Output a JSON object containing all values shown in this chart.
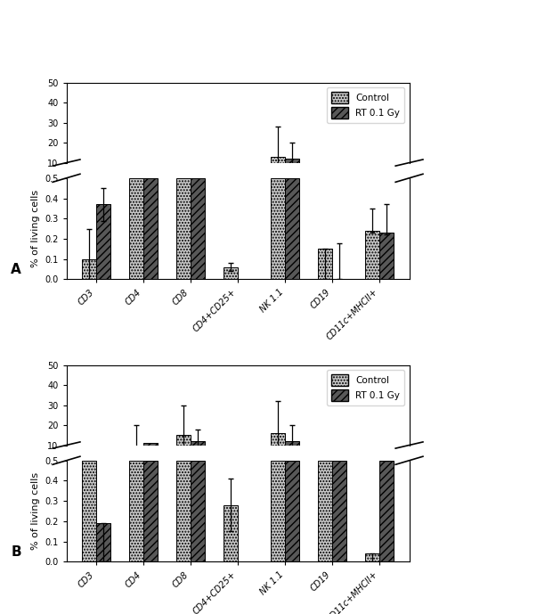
{
  "categories": [
    "CD3",
    "CD4",
    "CD8",
    "CD4+CD25+",
    "NK 1.1",
    "CD19",
    "CD11c+MHCII+"
  ],
  "panel_A": {
    "control_lower": [
      0.1,
      0.5,
      0.5,
      0.06,
      0.5,
      0.15,
      0.24
    ],
    "rt_lower": [
      0.37,
      0.5,
      0.5,
      0.0,
      0.5,
      0.0,
      0.23
    ],
    "control_lower_err_minus": [
      0.1,
      0.0,
      0.0,
      0.02,
      0.0,
      0.15,
      0.01
    ],
    "control_lower_err_plus": [
      0.15,
      0.0,
      0.0,
      0.02,
      0.0,
      0.0,
      0.11
    ],
    "rt_lower_err_minus": [
      0.08,
      0.0,
      0.0,
      0.0,
      0.0,
      0.0,
      0.01
    ],
    "rt_lower_err_plus": [
      0.08,
      0.0,
      0.0,
      0.0,
      0.0,
      0.18,
      0.14
    ],
    "control_upper": [
      null,
      7.0,
      7.0,
      null,
      13.0,
      null,
      null
    ],
    "rt_upper": [
      null,
      7.0,
      7.0,
      null,
      12.0,
      null,
      null
    ],
    "control_upper_err": [
      null,
      1.0,
      1.0,
      null,
      15.0,
      null,
      null
    ],
    "rt_upper_err": [
      null,
      1.5,
      1.5,
      null,
      8.0,
      null,
      null
    ],
    "panel_label": "A"
  },
  "panel_B": {
    "control_lower": [
      0.5,
      0.5,
      0.5,
      0.28,
      0.5,
      0.5,
      0.04
    ],
    "rt_lower": [
      0.19,
      0.5,
      0.5,
      0.0,
      0.5,
      0.5,
      0.5
    ],
    "control_lower_err_minus": [
      0.0,
      0.0,
      0.0,
      0.13,
      0.0,
      0.0,
      0.04
    ],
    "control_lower_err_plus": [
      0.0,
      0.0,
      0.0,
      0.13,
      0.0,
      0.0,
      0.0
    ],
    "rt_lower_err_minus": [
      0.19,
      0.0,
      0.0,
      0.0,
      0.0,
      0.0,
      0.0
    ],
    "rt_lower_err_plus": [
      0.0,
      0.0,
      0.0,
      0.0,
      0.0,
      0.0,
      0.43
    ],
    "control_upper": [
      6.0,
      9.0,
      15.0,
      null,
      16.0,
      4.0,
      null
    ],
    "rt_upper": [
      6.0,
      11.0,
      12.0,
      null,
      12.0,
      4.5,
      4.5
    ],
    "control_upper_err": [
      0.0,
      11.0,
      15.0,
      null,
      16.0,
      0.5,
      null
    ],
    "rt_upper_err": [
      0.0,
      0.0,
      6.0,
      null,
      8.0,
      0.5,
      0.0
    ],
    "panel_label": "B"
  },
  "ylabel": "% of living cells",
  "legend_control": "Control",
  "legend_rt": "RT 0.1 Gy",
  "lower_ylim": [
    0.0,
    0.5
  ],
  "upper_ylim": [
    10,
    50
  ],
  "lower_yticks": [
    0.0,
    0.1,
    0.2,
    0.3,
    0.4,
    0.5
  ],
  "upper_yticks": [
    10,
    20,
    30,
    40,
    50
  ],
  "bar_width": 0.3,
  "control_hatch": ".....",
  "rt_hatch": "////",
  "control_facecolor": "#c8c8c8",
  "rt_facecolor": "#585858",
  "bar_edge_color": "#000000",
  "bg_color": "#ffffff",
  "fontsize_label": 8,
  "fontsize_tick": 7,
  "fontsize_legend": 7.5
}
